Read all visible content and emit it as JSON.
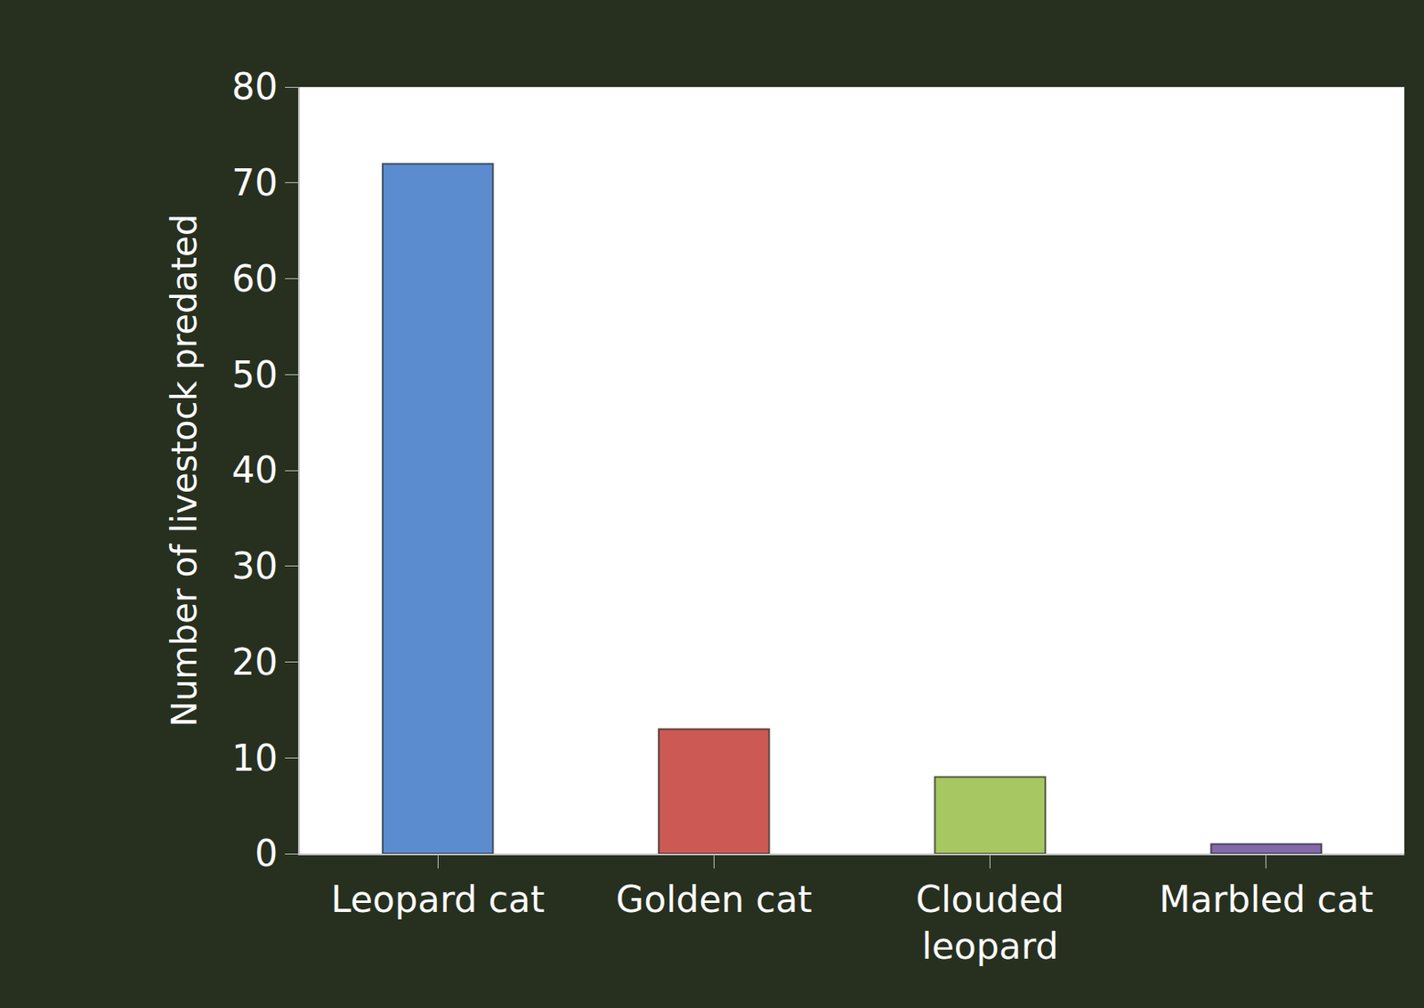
{
  "chart_data": {
    "type": "bar",
    "categories": [
      "Leopard cat",
      "Golden cat",
      "Clouded leopard",
      "Marbled cat"
    ],
    "values": [
      72,
      13,
      8,
      1
    ],
    "colors": [
      "#5a8ccf",
      "#cd5955",
      "#a6c761",
      "#8368ab"
    ],
    "y_label": "Number of livestock predated",
    "ylim": [
      0,
      80
    ],
    "yticks": [
      0,
      10,
      20,
      30,
      40,
      50,
      60,
      70,
      80
    ],
    "grid": false
  }
}
